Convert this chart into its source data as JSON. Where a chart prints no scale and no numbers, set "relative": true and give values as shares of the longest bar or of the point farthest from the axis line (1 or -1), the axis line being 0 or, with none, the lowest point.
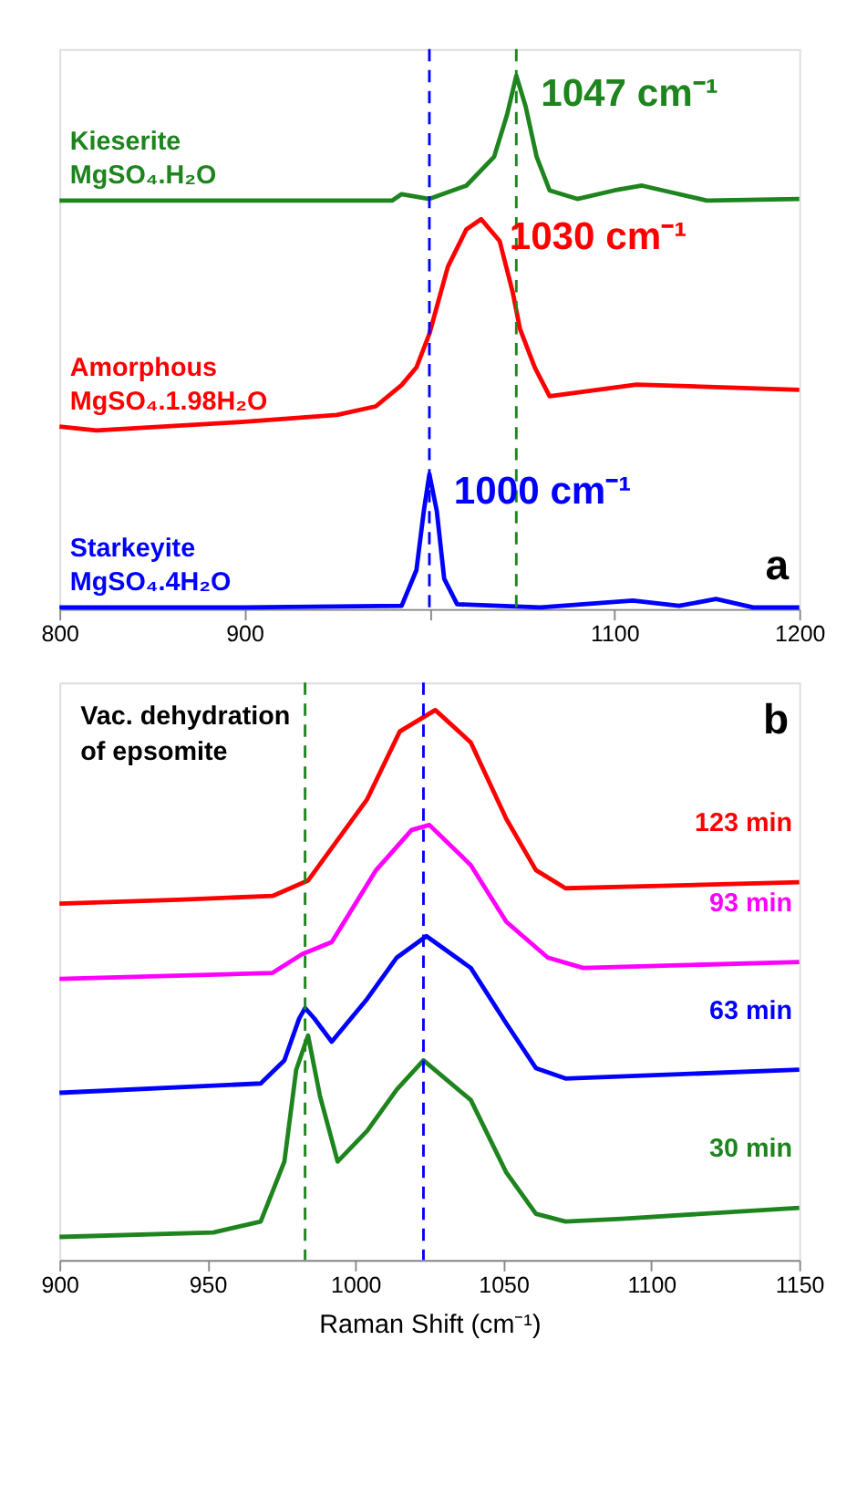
{
  "chart_data": [
    {
      "type": "line",
      "relative": true,
      "grid": false,
      "legend": false,
      "line_style": "solid",
      "marker": "none",
      "xlim": [
        800,
        1200
      ],
      "xticks": [
        800,
        900,
        {
          "value": 1000,
          "label": null
        },
        1100,
        1200
      ],
      "series": [
        {
          "name": "Kieserite\nMgSO₄.H₂O",
          "color": "#1e841e",
          "x": [
            800,
            900,
            980,
            985,
            1000,
            1020,
            1035,
            1042,
            1047,
            1052,
            1058,
            1065,
            1080,
            1100,
            1115,
            1130,
            1150,
            1200
          ],
          "values": [
            0.766,
            0.766,
            0.766,
            0.778,
            0.769,
            0.794,
            0.848,
            0.927,
            1,
            0.943,
            0.848,
            0.785,
            0.769,
            0.785,
            0.794,
            0.782,
            0.766,
            0.769
          ]
        },
        {
          "name": "Amorphous\nMgSO₄.1.98H₂O",
          "color": "#ff0000",
          "x": [
            800,
            820,
            900,
            950,
            971,
            985,
            993,
            1000,
            1010,
            1020,
            1028,
            1038,
            1045,
            1049,
            1057,
            1065,
            1112,
            1200
          ],
          "values": [
            0.342,
            0.335,
            0.351,
            0.364,
            0.38,
            0.42,
            0.453,
            0.516,
            0.642,
            0.712,
            0.731,
            0.69,
            0.595,
            0.525,
            0.453,
            0.399,
            0.421,
            0.411
          ]
        },
        {
          "name": "Starkeyite\nMgSO₄.4H₂O",
          "color": "#0000ff",
          "x": [
            800,
            900,
            985,
            993,
            997,
            1000,
            1004,
            1008,
            1015,
            1060,
            1110,
            1135,
            1155,
            1175,
            1200
          ],
          "values": [
            0.003,
            0.003,
            0.006,
            0.073,
            0.184,
            0.253,
            0.184,
            0.057,
            0.009,
            0.003,
            0.016,
            0.006,
            0.019,
            0.003,
            0.003
          ]
        }
      ],
      "ref_lines": [
        {
          "axis": "x",
          "value": 1000,
          "color": "#0000ff",
          "line_style": "dashed"
        },
        {
          "axis": "x",
          "value": 1047,
          "color": "#1e841e",
          "line_style": "dashed"
        }
      ],
      "annotations": [
        {
          "text": "1047 cm⁻¹",
          "x": 1047,
          "y": 1
        },
        {
          "text": "1030 cm⁻¹",
          "x": 1030,
          "y": 0.731
        },
        {
          "text": "1000 cm⁻¹",
          "x": 1000,
          "y": 0.253
        },
        "a"
      ]
    },
    {
      "type": "line",
      "relative": true,
      "grid": false,
      "legend": false,
      "line_style": "solid",
      "marker": "none",
      "xlim": [
        900,
        1150
      ],
      "xticks": [
        900,
        950,
        1000,
        1050,
        1100,
        1150
      ],
      "xlabel": "Raman Shift (cm⁻¹)",
      "series": [
        {
          "name": "123 min",
          "color": "#ff0000",
          "x": [
            900,
            940,
            972,
            984,
            1004,
            1015,
            1027,
            1039,
            1051,
            1061,
            1071,
            1100,
            1150
          ],
          "values": [
            0.648,
            0.655,
            0.662,
            0.69,
            0.838,
            0.961,
            1,
            0.941,
            0.802,
            0.709,
            0.676,
            0.68,
            0.687
          ]
        },
        {
          "name": "93 min",
          "color": "#ff00ff",
          "x": [
            900,
            972,
            982,
            992,
            1007,
            1019,
            1025,
            1039,
            1051,
            1065,
            1077,
            1150
          ],
          "values": [
            0.511,
            0.522,
            0.556,
            0.578,
            0.709,
            0.782,
            0.791,
            0.718,
            0.615,
            0.55,
            0.531,
            0.542
          ]
        },
        {
          "name": "63 min",
          "color": "#0000ff",
          "x": [
            900,
            968,
            976,
            981,
            983,
            986,
            992,
            1004,
            1014,
            1024,
            1039,
            1051,
            1061,
            1071,
            1150
          ],
          "values": [
            0.304,
            0.321,
            0.363,
            0.439,
            0.458,
            0.44,
            0.397,
            0.475,
            0.55,
            0.589,
            0.531,
            0.43,
            0.349,
            0.33,
            0.346
          ]
        },
        {
          "name": "30 min",
          "color": "#1e841e",
          "x": [
            900,
            952,
            968,
            976,
            980,
            984,
            988,
            994,
            1004,
            1014,
            1023,
            1039,
            1051,
            1061,
            1071,
            1090,
            1150
          ],
          "values": [
            0.042,
            0.05,
            0.07,
            0.179,
            0.346,
            0.408,
            0.299,
            0.179,
            0.235,
            0.31,
            0.363,
            0.291,
            0.159,
            0.084,
            0.07,
            0.075,
            0.095
          ]
        }
      ],
      "ref_lines": [
        {
          "axis": "x",
          "value": 983,
          "color": "#1e841e",
          "line_style": "dashed"
        },
        {
          "axis": "x",
          "value": 1023,
          "color": "#0000ff",
          "line_style": "dashed"
        }
      ],
      "annotations": [
        "Vac. dehydration\nof epsomite",
        "b"
      ]
    }
  ]
}
